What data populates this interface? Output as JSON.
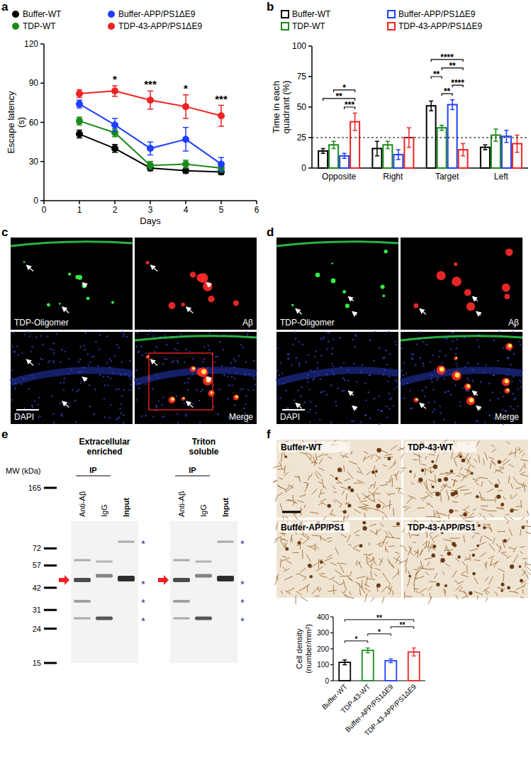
{
  "chart_data": [
    {
      "type": "line",
      "x_label": "Days",
      "y_label": [
        "Escape latency",
        "(s)"
      ],
      "x": [
        1,
        2,
        3,
        4,
        5
      ],
      "xlim": [
        0,
        6
      ],
      "xticks": [
        0,
        1,
        2,
        3,
        4,
        5,
        6
      ],
      "ylim": [
        0,
        120
      ],
      "yticks": [
        0,
        30,
        60,
        90,
        120
      ],
      "marker": "circle",
      "legend": "top",
      "series": [
        {
          "name": "Buffer-WT",
          "color": "#000000",
          "values": [
            51,
            40,
            25,
            23,
            22
          ],
          "errors": [
            3,
            3,
            2,
            2,
            2
          ]
        },
        {
          "name": "TDP-WT",
          "color": "#1a8a1a",
          "values": [
            61,
            52,
            27,
            28,
            25
          ],
          "errors": [
            3,
            3,
            3,
            3,
            3
          ]
        },
        {
          "name": "Buffer-APP/PS1ΔE9",
          "color": "#1f3fff",
          "values": [
            74,
            58,
            40,
            47,
            28
          ],
          "errors": [
            3,
            5,
            5,
            9,
            5
          ]
        },
        {
          "name": "TDP-43-APP/PS1ΔE9",
          "color": "#ee2222",
          "values": [
            82,
            84,
            77,
            72,
            65
          ],
          "errors": [
            3,
            4,
            7,
            9,
            8
          ]
        }
      ],
      "annotations": [
        {
          "x": 2,
          "text": "*"
        },
        {
          "x": 3,
          "text": "***"
        },
        {
          "x": 4,
          "text": "*"
        },
        {
          "x": 5,
          "text": "***"
        }
      ]
    },
    {
      "type": "bar",
      "y_label": [
        "Time in each",
        "quadrant (%)"
      ],
      "categories": [
        "Opposite",
        "Right",
        "Target",
        "Left"
      ],
      "ylim": [
        0,
        100
      ],
      "yticks": [
        0,
        25,
        50,
        75,
        100
      ],
      "legend": "top",
      "reference_line": 25,
      "series": [
        {
          "name": "Buffer-WT",
          "color": "#000000",
          "values": [
            14,
            16,
            51,
            17
          ],
          "errors": [
            2,
            6,
            4,
            2
          ]
        },
        {
          "name": "TDP-WT",
          "color": "#1a8a1a",
          "values": [
            19,
            19,
            33,
            27
          ],
          "errors": [
            3,
            3,
            2,
            5
          ]
        },
        {
          "name": "Buffer-APP/PS1ΔE9",
          "color": "#1f3fff",
          "values": [
            10,
            11,
            52,
            26
          ],
          "errors": [
            2,
            4,
            4,
            5
          ]
        },
        {
          "name": "TDP-43-APP/PS1ΔE9",
          "color": "#ee2222",
          "values": [
            38,
            25,
            15,
            20
          ],
          "errors": [
            7,
            8,
            5,
            7
          ]
        }
      ],
      "brackets": [
        {
          "category": 0,
          "from": 2,
          "to": 3,
          "text": "***"
        },
        {
          "category": 0,
          "from": 0,
          "to": 3,
          "text": "**"
        },
        {
          "category": 0,
          "from": 1,
          "to": 3,
          "text": "*"
        },
        {
          "category": 2,
          "from": 1,
          "to": 2,
          "text": "**"
        },
        {
          "category": 2,
          "from": 2,
          "to": 3,
          "text": "****"
        },
        {
          "category": 2,
          "from": 0,
          "to": 1,
          "text": "**"
        },
        {
          "category": 2,
          "from": 1,
          "to": 3,
          "text": "**"
        },
        {
          "category": 2,
          "from": 0,
          "to": 3,
          "text": "****"
        }
      ]
    },
    {
      "type": "bar",
      "y_label": [
        "Cell density",
        "(number/mm²)"
      ],
      "categories": [
        "Buffer-WT",
        "TDP-43-WT",
        "Buffer-APP/PS1ΔE9",
        "TDP-43-APP/PS1ΔE9"
      ],
      "values": [
        115,
        190,
        125,
        180
      ],
      "errors": [
        15,
        15,
        12,
        25
      ],
      "colors": [
        "#000000",
        "#1a8a1a",
        "#1f3fff",
        "#ee2222"
      ],
      "ylim": [
        0,
        400
      ],
      "yticks": [
        0,
        100,
        200,
        300,
        400
      ],
      "brackets": [
        {
          "from": 0,
          "to": 1,
          "text": "*"
        },
        {
          "from": 1,
          "to": 2,
          "text": "*"
        },
        {
          "from": 2,
          "to": 3,
          "text": "**"
        },
        {
          "from": 0,
          "to": 3,
          "text": "**"
        }
      ]
    }
  ],
  "figure": {
    "panel_labels": [
      "a",
      "b",
      "c",
      "d",
      "e",
      "f"
    ],
    "fluorescence": [
      {
        "labels": [
          "TDP-Oligomer",
          "Aβ",
          "DAPI",
          "Merge"
        ]
      },
      {
        "labels": [
          "TDP-Oligomer",
          "Aβ",
          "DAPI",
          "Merge"
        ]
      }
    ],
    "blot": {
      "mw_title": "MW (kDa)",
      "mw_markers": [
        165,
        72,
        57,
        42,
        31,
        24,
        15
      ],
      "star": "*",
      "blots": [
        {
          "title": [
            "Extracellular",
            "enriched"
          ],
          "ip": "IP",
          "lanes": [
            "Anti-Aβ",
            "IgG",
            "Input"
          ]
        },
        {
          "title": [
            "Triton",
            "soluble"
          ],
          "ip": "IP",
          "lanes": [
            "Anti-Aβ",
            "IgG",
            "Input"
          ]
        }
      ]
    },
    "ihc_labels": [
      "Buffer-WT",
      "TDP-43-WT",
      "Buffer-APP/PS1",
      "TDP-43-APP/PS1"
    ]
  }
}
